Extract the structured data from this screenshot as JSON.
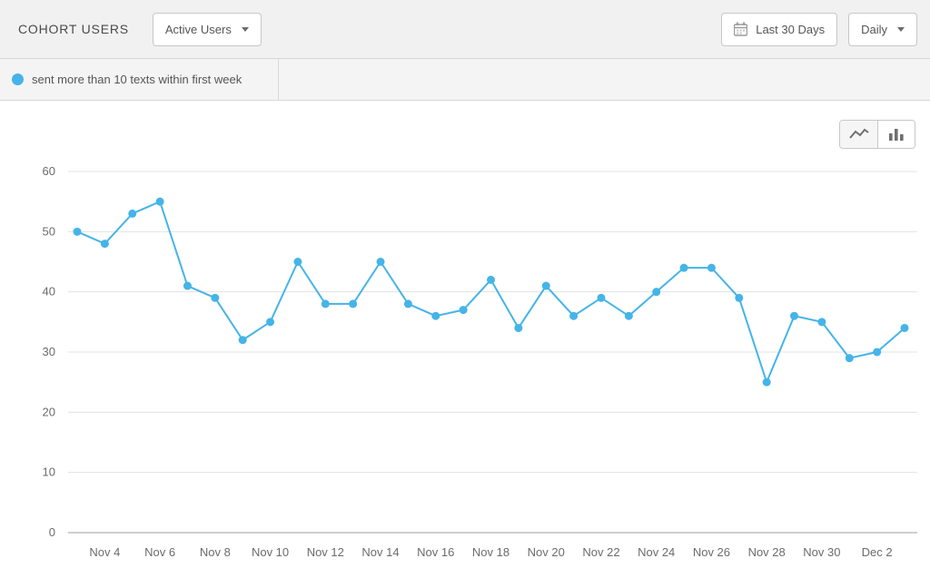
{
  "header": {
    "title": "COHORT USERS",
    "segment_dropdown": {
      "value": "Active Users",
      "icon": "chevron-down-icon"
    },
    "date_range_button": {
      "label": "Last 30 Days",
      "icon": "calendar-icon"
    },
    "interval_dropdown": {
      "value": "Daily",
      "icon": "chevron-down-icon"
    }
  },
  "legend": {
    "series": {
      "label": "sent more than 10 texts within first week",
      "color": "#45b4e8",
      "icon": "series-dot-icon"
    }
  },
  "chart_toolbar": {
    "toggles": [
      {
        "icon": "line-chart-icon",
        "active": true
      },
      {
        "icon": "bar-chart-icon",
        "active": false
      }
    ]
  },
  "chart_data": {
    "type": "line",
    "title": "",
    "xlabel": "",
    "ylabel": "",
    "x": [
      "Nov 3",
      "Nov 4",
      "Nov 5",
      "Nov 6",
      "Nov 7",
      "Nov 8",
      "Nov 9",
      "Nov 10",
      "Nov 11",
      "Nov 12",
      "Nov 13",
      "Nov 14",
      "Nov 15",
      "Nov 16",
      "Nov 17",
      "Nov 18",
      "Nov 19",
      "Nov 20",
      "Nov 21",
      "Nov 22",
      "Nov 23",
      "Nov 24",
      "Nov 25",
      "Nov 26",
      "Nov 27",
      "Nov 28",
      "Nov 29",
      "Nov 30",
      "Dec 1",
      "Dec 2",
      "Dec 3"
    ],
    "x_tick_labels": [
      "Nov 4",
      "Nov 6",
      "Nov 8",
      "Nov 10",
      "Nov 12",
      "Nov 14",
      "Nov 16",
      "Nov 18",
      "Nov 20",
      "Nov 22",
      "Nov 24",
      "Nov 26",
      "Nov 28",
      "Nov 30",
      "Dec 2"
    ],
    "series": [
      {
        "name": "sent more than 10 texts within first week",
        "color": "#45b4e8",
        "values": [
          50,
          48,
          53,
          55,
          41,
          39,
          32,
          35,
          45,
          38,
          38,
          45,
          38,
          36,
          37,
          42,
          34,
          41,
          36,
          39,
          36,
          40,
          44,
          44,
          39,
          25,
          36,
          35,
          29,
          30,
          34
        ]
      }
    ],
    "ylim": [
      0,
      60
    ],
    "yticks": [
      0,
      10,
      20,
      30,
      40,
      50,
      60
    ],
    "grid": true,
    "legend_position": "top-left",
    "colors": {
      "grid_line": "#e3e3e3",
      "zero_line": "#9e9e9e",
      "axis_text": "#6b6b6b"
    }
  }
}
